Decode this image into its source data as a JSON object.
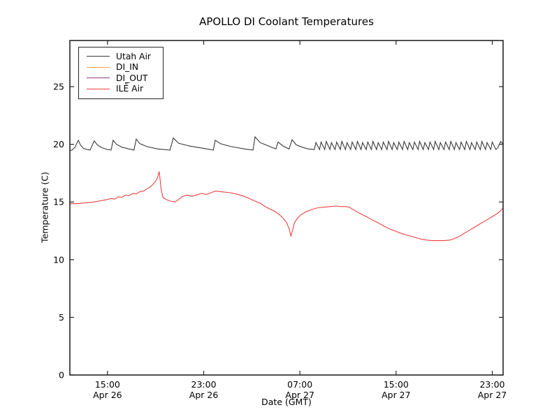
{
  "chart_data": {
    "type": "line",
    "title": "APOLLO DI Coolant Temperatures",
    "xlabel": "Date (GMT)",
    "ylabel": "Temperature (C)",
    "grid": false,
    "legend_position": "upper-left",
    "frame_color": "#262626",
    "background": "#ffffff",
    "x_unit": "hours since Apr 26 00:00 GMT",
    "xlim": [
      11.87,
      47.9
    ],
    "ylim": [
      0,
      29
    ],
    "yticks": [
      {
        "v": 0,
        "label": "0"
      },
      {
        "v": 5,
        "label": "5"
      },
      {
        "v": 10,
        "label": "10"
      },
      {
        "v": 15,
        "label": "15"
      },
      {
        "v": 20,
        "label": "20"
      },
      {
        "v": 25,
        "label": "25"
      }
    ],
    "xticks": [
      {
        "t": 15,
        "time": "15:00",
        "date": "Apr 26"
      },
      {
        "t": 23,
        "time": "23:00",
        "date": "Apr 26"
      },
      {
        "t": 31,
        "time": "07:00",
        "date": "Apr 27"
      },
      {
        "t": 39,
        "time": "15:00",
        "date": "Apr 27"
      },
      {
        "t": 47,
        "time": "23:00",
        "date": "Apr 27"
      }
    ],
    "series": [
      {
        "name": "Utah Air",
        "color": "#3a3a3a",
        "points": [
          [
            11.87,
            19.45
          ],
          [
            12.05,
            19.5
          ],
          [
            12.3,
            19.75
          ],
          [
            12.57,
            20.35
          ],
          [
            12.75,
            19.95
          ],
          [
            13.0,
            19.65
          ],
          [
            13.3,
            19.55
          ],
          [
            13.55,
            19.5
          ],
          [
            13.9,
            20.3
          ],
          [
            14.15,
            19.95
          ],
          [
            14.55,
            19.7
          ],
          [
            15.0,
            19.55
          ],
          [
            15.3,
            19.5
          ],
          [
            15.47,
            20.35
          ],
          [
            15.75,
            20.0
          ],
          [
            16.2,
            19.75
          ],
          [
            16.8,
            19.6
          ],
          [
            17.2,
            19.5
          ],
          [
            17.39,
            20.45
          ],
          [
            17.7,
            20.05
          ],
          [
            18.3,
            19.8
          ],
          [
            19.2,
            19.6
          ],
          [
            20.2,
            19.5
          ],
          [
            20.47,
            20.55
          ],
          [
            20.9,
            20.1
          ],
          [
            21.8,
            19.85
          ],
          [
            23.0,
            19.65
          ],
          [
            23.8,
            19.5
          ],
          [
            23.96,
            20.35
          ],
          [
            24.4,
            20.05
          ],
          [
            25.3,
            19.8
          ],
          [
            26.4,
            19.6
          ],
          [
            27.1,
            19.5
          ],
          [
            27.27,
            20.65
          ],
          [
            27.7,
            20.15
          ],
          [
            28.4,
            19.85
          ],
          [
            29.0,
            19.6
          ],
          [
            29.19,
            20.2
          ],
          [
            29.6,
            19.85
          ],
          [
            30.1,
            19.6
          ],
          [
            30.35,
            20.4
          ],
          [
            30.7,
            19.95
          ],
          [
            31.2,
            19.75
          ],
          [
            31.7,
            19.6
          ],
          [
            32.2,
            19.55
          ]
        ],
        "generator": {
          "type": "sawtooth",
          "t_start": 32.2,
          "t_end": 47.3,
          "cycles": 35,
          "trough": 19.55,
          "peak": 20.15,
          "rise_fraction": 0.3,
          "peak_jitter": 0.05
        },
        "tail": [
          [
            47.45,
            19.7
          ],
          [
            47.7,
            20.25
          ],
          [
            47.9,
            20.0
          ]
        ]
      },
      {
        "name": "DI_IN",
        "color": "#ffa33f",
        "points": []
      },
      {
        "name": "DI_OUT",
        "color": "#8a3c8a",
        "points": []
      },
      {
        "name": "ILĒ Air",
        "color": "#ee4040",
        "points": [
          [
            11.87,
            14.85
          ],
          [
            12.4,
            14.85
          ],
          [
            12.9,
            14.9
          ],
          [
            13.4,
            14.95
          ],
          [
            13.9,
            15.0
          ],
          [
            14.4,
            15.1
          ],
          [
            14.9,
            15.2
          ],
          [
            15.3,
            15.3
          ],
          [
            15.6,
            15.25
          ],
          [
            15.9,
            15.45
          ],
          [
            16.2,
            15.4
          ],
          [
            16.5,
            15.6
          ],
          [
            16.8,
            15.55
          ],
          [
            17.1,
            15.75
          ],
          [
            17.4,
            15.7
          ],
          [
            17.7,
            15.9
          ],
          [
            18.0,
            15.95
          ],
          [
            18.3,
            16.15
          ],
          [
            18.55,
            16.3
          ],
          [
            18.8,
            16.55
          ],
          [
            19.0,
            16.8
          ],
          [
            19.15,
            17.1
          ],
          [
            19.3,
            17.65
          ],
          [
            19.45,
            16.2
          ],
          [
            19.6,
            15.4
          ],
          [
            19.9,
            15.2
          ],
          [
            20.3,
            15.05
          ],
          [
            20.6,
            15.0
          ],
          [
            20.9,
            15.2
          ],
          [
            21.2,
            15.45
          ],
          [
            21.6,
            15.6
          ],
          [
            22.0,
            15.5
          ],
          [
            22.4,
            15.6
          ],
          [
            22.8,
            15.75
          ],
          [
            23.2,
            15.65
          ],
          [
            23.6,
            15.8
          ],
          [
            24.0,
            15.95
          ],
          [
            24.4,
            15.9
          ],
          [
            24.8,
            15.85
          ],
          [
            25.2,
            15.8
          ],
          [
            25.7,
            15.7
          ],
          [
            26.2,
            15.55
          ],
          [
            26.7,
            15.35
          ],
          [
            27.2,
            15.1
          ],
          [
            27.7,
            14.9
          ],
          [
            28.1,
            14.6
          ],
          [
            28.5,
            14.4
          ],
          [
            28.9,
            14.2
          ],
          [
            29.3,
            13.9
          ],
          [
            29.6,
            13.6
          ],
          [
            29.9,
            13.2
          ],
          [
            30.1,
            12.7
          ],
          [
            30.25,
            12.05
          ],
          [
            30.4,
            12.6
          ],
          [
            30.55,
            13.2
          ],
          [
            30.8,
            13.6
          ],
          [
            31.1,
            13.9
          ],
          [
            31.5,
            14.15
          ],
          [
            32.0,
            14.35
          ],
          [
            32.5,
            14.5
          ],
          [
            33.0,
            14.55
          ],
          [
            33.5,
            14.6
          ],
          [
            34.0,
            14.65
          ],
          [
            34.4,
            14.6
          ],
          [
            34.8,
            14.6
          ],
          [
            35.1,
            14.55
          ],
          [
            35.5,
            14.3
          ],
          [
            36.0,
            14.0
          ],
          [
            36.5,
            13.75
          ],
          [
            37.0,
            13.45
          ],
          [
            37.5,
            13.2
          ],
          [
            38.0,
            12.9
          ],
          [
            38.5,
            12.65
          ],
          [
            39.0,
            12.45
          ],
          [
            39.5,
            12.25
          ],
          [
            40.0,
            12.1
          ],
          [
            40.5,
            11.95
          ],
          [
            41.0,
            11.8
          ],
          [
            41.5,
            11.7
          ],
          [
            42.0,
            11.65
          ],
          [
            42.5,
            11.65
          ],
          [
            43.0,
            11.65
          ],
          [
            43.5,
            11.7
          ],
          [
            43.9,
            11.85
          ],
          [
            44.3,
            12.05
          ],
          [
            44.7,
            12.3
          ],
          [
            45.1,
            12.55
          ],
          [
            45.5,
            12.8
          ],
          [
            45.9,
            13.05
          ],
          [
            46.3,
            13.3
          ],
          [
            46.7,
            13.55
          ],
          [
            47.1,
            13.8
          ],
          [
            47.4,
            14.0
          ],
          [
            47.6,
            14.15
          ],
          [
            47.75,
            14.3
          ],
          [
            47.9,
            14.5
          ]
        ]
      }
    ]
  }
}
